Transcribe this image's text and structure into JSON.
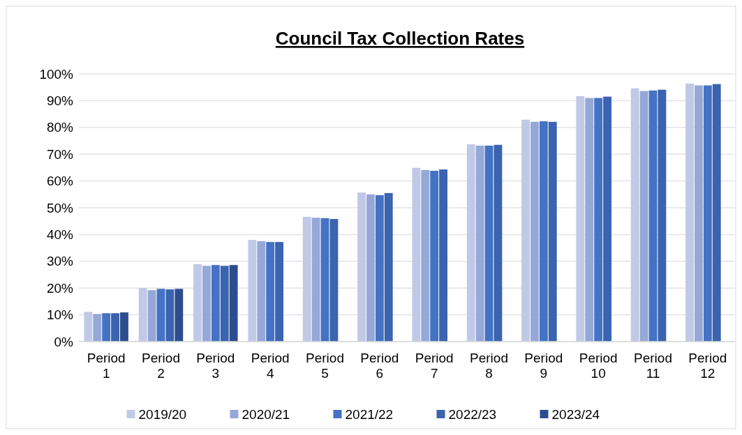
{
  "chart_data": {
    "type": "bar",
    "title": "Council Tax Collection Rates",
    "categories": [
      "Period 1",
      "Period 2",
      "Period 3",
      "Period 4",
      "Period 5",
      "Period 6",
      "Period 7",
      "Period 8",
      "Period 9",
      "Period 10",
      "Period 11",
      "Period 12"
    ],
    "series": [
      {
        "name": "2019/20",
        "color": "#c0c9e6",
        "values": [
          11.1,
          20.0,
          28.9,
          38.0,
          46.6,
          55.7,
          64.9,
          73.7,
          82.9,
          91.7,
          94.6,
          96.4
        ]
      },
      {
        "name": "2020/21",
        "color": "#95a8d8",
        "values": [
          10.3,
          19.2,
          28.3,
          37.5,
          46.3,
          55.0,
          64.1,
          73.2,
          82.1,
          91.0,
          93.6,
          95.7
        ]
      },
      {
        "name": "2021/22",
        "color": "#4472c4",
        "values": [
          10.6,
          19.7,
          28.6,
          37.2,
          46.1,
          54.7,
          63.8,
          73.2,
          82.3,
          91.0,
          93.8,
          95.7
        ]
      },
      {
        "name": "2022/23",
        "color": "#3a63b0",
        "values": [
          10.6,
          19.5,
          28.3,
          37.2,
          45.8,
          55.5,
          64.3,
          73.5,
          82.1,
          91.5,
          94.1,
          96.2
        ]
      },
      {
        "name": "2023/24",
        "color": "#2e4d8f",
        "values": [
          10.9,
          19.7,
          28.6,
          null,
          null,
          null,
          null,
          null,
          null,
          null,
          null,
          null
        ]
      }
    ],
    "ylim": [
      0,
      100
    ],
    "yticks": [
      {
        "value": 0,
        "label": "0%"
      },
      {
        "value": 10,
        "label": "10%"
      },
      {
        "value": 20,
        "label": "20%"
      },
      {
        "value": 30,
        "label": "30%"
      },
      {
        "value": 40,
        "label": "40%"
      },
      {
        "value": 50,
        "label": "50%"
      },
      {
        "value": 60,
        "label": "60%"
      },
      {
        "value": 70,
        "label": "70%"
      },
      {
        "value": 80,
        "label": "80%"
      },
      {
        "value": 90,
        "label": "90%"
      },
      {
        "value": 100,
        "label": "100%"
      }
    ],
    "grid": "y",
    "legend": "bottom"
  }
}
